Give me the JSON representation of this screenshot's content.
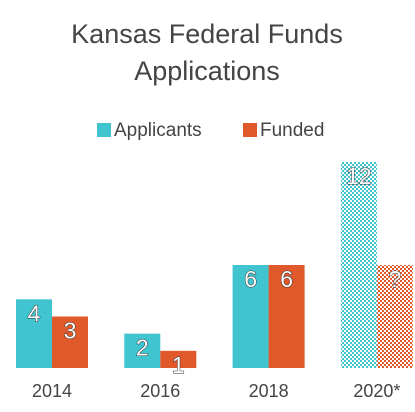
{
  "chart_data": {
    "type": "bar",
    "title": [
      "Kansas Federal Funds",
      "Applications"
    ],
    "categories": [
      "2014",
      "2016",
      "2018",
      "2020*"
    ],
    "series": [
      {
        "name": "Applicants",
        "color": "#3fc4d0",
        "values": [
          4,
          2,
          6,
          12
        ]
      },
      {
        "name": "Funded",
        "color": "#e0592b",
        "values": [
          3,
          1,
          6,
          6
        ],
        "value_labels": [
          "3",
          "1",
          "6",
          "?"
        ]
      }
    ],
    "legend": "top"
  }
}
